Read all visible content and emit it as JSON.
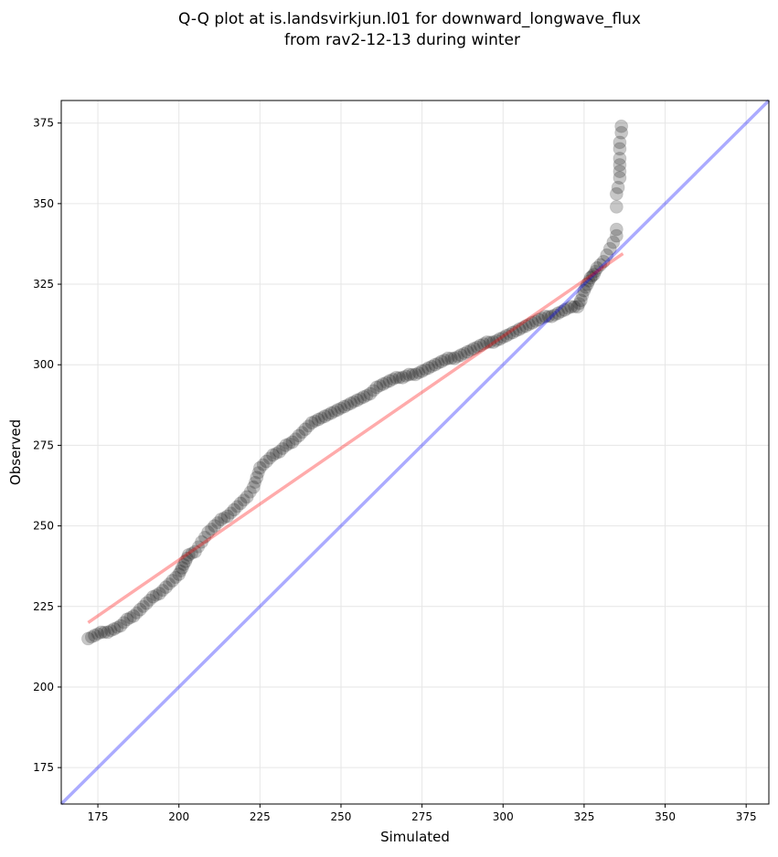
{
  "chart_data": {
    "type": "scatter",
    "title": [
      "Q-Q plot at is.landsvirkjun.l01 for downward_longwave_flux",
      "from rav2-12-13 during winter"
    ],
    "xlabel": "Simulated",
    "ylabel": "Observed",
    "xlim": [
      163.7,
      382
    ],
    "ylim": [
      163.7,
      382
    ],
    "xticks": [
      175,
      200,
      225,
      250,
      275,
      300,
      325,
      350,
      375
    ],
    "yticks": [
      175,
      200,
      225,
      250,
      275,
      300,
      325,
      350,
      375
    ],
    "grid": true,
    "point_color": "#000000",
    "points": [
      [
        172,
        215
      ],
      [
        174,
        216
      ],
      [
        176,
        217
      ],
      [
        178,
        217
      ],
      [
        180,
        218
      ],
      [
        182,
        219
      ],
      [
        184,
        221
      ],
      [
        186,
        222
      ],
      [
        188,
        224
      ],
      [
        190,
        226
      ],
      [
        192,
        228
      ],
      [
        194,
        229
      ],
      [
        196,
        231
      ],
      [
        198,
        233
      ],
      [
        200,
        235
      ],
      [
        201,
        237
      ],
      [
        202,
        239
      ],
      [
        203,
        241
      ],
      [
        205,
        242
      ],
      [
        207,
        245
      ],
      [
        209,
        248
      ],
      [
        211,
        250
      ],
      [
        213,
        252
      ],
      [
        215,
        253
      ],
      [
        217,
        255
      ],
      [
        219,
        257
      ],
      [
        221,
        259
      ],
      [
        223,
        262
      ],
      [
        224,
        265
      ],
      [
        225,
        268
      ],
      [
        227,
        270
      ],
      [
        229,
        272
      ],
      [
        231,
        273
      ],
      [
        233,
        275
      ],
      [
        235,
        276
      ],
      [
        237,
        278
      ],
      [
        239,
        280
      ],
      [
        241,
        282
      ],
      [
        243,
        283
      ],
      [
        245,
        284
      ],
      [
        247,
        285
      ],
      [
        249,
        286
      ],
      [
        251,
        287
      ],
      [
        253,
        288
      ],
      [
        255,
        289
      ],
      [
        257,
        290
      ],
      [
        259,
        291
      ],
      [
        261,
        293
      ],
      [
        263,
        294
      ],
      [
        265,
        295
      ],
      [
        267,
        296
      ],
      [
        269,
        296
      ],
      [
        271,
        297
      ],
      [
        273,
        297
      ],
      [
        275,
        298
      ],
      [
        277,
        299
      ],
      [
        279,
        300
      ],
      [
        281,
        301
      ],
      [
        283,
        302
      ],
      [
        285,
        302
      ],
      [
        287,
        303
      ],
      [
        289,
        304
      ],
      [
        291,
        305
      ],
      [
        293,
        306
      ],
      [
        295,
        307
      ],
      [
        297,
        307
      ],
      [
        299,
        308
      ],
      [
        301,
        309
      ],
      [
        303,
        310
      ],
      [
        305,
        311
      ],
      [
        307,
        312
      ],
      [
        309,
        313
      ],
      [
        311,
        314
      ],
      [
        313,
        315
      ],
      [
        315,
        315
      ],
      [
        317,
        316
      ],
      [
        319,
        317
      ],
      [
        321,
        318
      ],
      [
        323,
        318
      ],
      [
        324,
        320
      ],
      [
        325,
        323
      ],
      [
        326,
        325
      ],
      [
        327,
        327
      ],
      [
        328,
        328
      ],
      [
        329,
        330
      ],
      [
        330,
        331
      ],
      [
        331,
        332
      ],
      [
        332,
        334
      ],
      [
        333,
        336
      ],
      [
        334,
        338
      ],
      [
        335,
        340
      ],
      [
        335,
        342
      ],
      [
        335,
        349
      ],
      [
        335,
        353
      ],
      [
        335.5,
        355
      ],
      [
        336,
        358
      ],
      [
        336,
        360
      ],
      [
        336,
        362
      ],
      [
        336,
        364
      ],
      [
        336,
        367
      ],
      [
        336,
        369
      ],
      [
        336.5,
        372
      ],
      [
        336.5,
        374
      ]
    ],
    "fit_line": {
      "color": "#ff0000",
      "x": [
        172,
        337
      ],
      "y": [
        220,
        334.5
      ]
    },
    "identity_line": {
      "color": "#0000ff",
      "x": [
        163.7,
        382
      ],
      "y": [
        163.7,
        382
      ]
    }
  }
}
